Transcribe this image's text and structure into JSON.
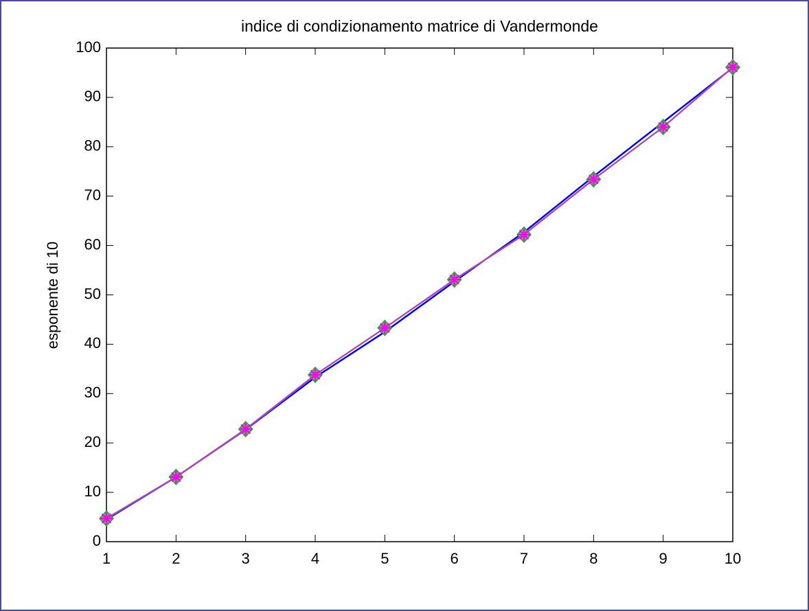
{
  "chart_data": {
    "type": "line",
    "title": "indice di condizionamento matrice di Vandermonde",
    "y_label": "esponente di 10",
    "x": [
      1,
      2,
      3,
      4,
      5,
      6,
      7,
      8,
      9,
      10
    ],
    "series": [
      {
        "color": "#0000ff",
        "values": [
          4.5,
          13.1,
          22.7,
          33.3,
          42.5,
          52.7,
          62.7,
          74.0,
          85.0,
          96.0
        ]
      },
      {
        "color": "#33dd33",
        "marker": "diamond",
        "values": [
          4.7,
          13.1,
          22.8,
          33.8,
          43.3,
          53.1,
          62.2,
          73.4,
          84.0,
          96.1
        ]
      },
      {
        "color": "#ff00ff",
        "marker": "asterisk",
        "values": [
          4.7,
          13.1,
          22.8,
          33.8,
          43.3,
          53.1,
          62.2,
          73.4,
          84.0,
          96.1
        ]
      }
    ],
    "xlim": [
      1,
      10
    ],
    "xticks": [
      1,
      2,
      3,
      4,
      5,
      6,
      7,
      8,
      9,
      10
    ],
    "ylim": [
      0,
      100
    ],
    "yticks": [
      0,
      10,
      20,
      30,
      40,
      50,
      60,
      70,
      80,
      90,
      100
    ],
    "grid": false
  }
}
